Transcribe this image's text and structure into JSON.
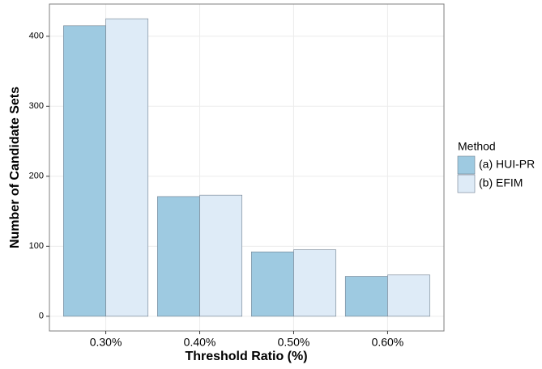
{
  "chart_data": {
    "type": "bar",
    "x_label": "Threshold Ratio (%)",
    "y_label": "Number of Candidate Sets",
    "legend_title": "Method",
    "legend_position": "right",
    "categories": [
      "0.30%",
      "0.40%",
      "0.50%",
      "0.60%"
    ],
    "series": [
      {
        "name": "(a) HUI-PR",
        "color": "#9ecae1",
        "values": [
          415,
          171,
          92,
          57
        ]
      },
      {
        "name": "(b) EFIM",
        "color": "#deebf7",
        "values": [
          425,
          173,
          95,
          59
        ]
      }
    ],
    "ylim": [
      -21,
      446
    ],
    "yticks": [
      0,
      100,
      200,
      300,
      400
    ],
    "grid": true
  }
}
